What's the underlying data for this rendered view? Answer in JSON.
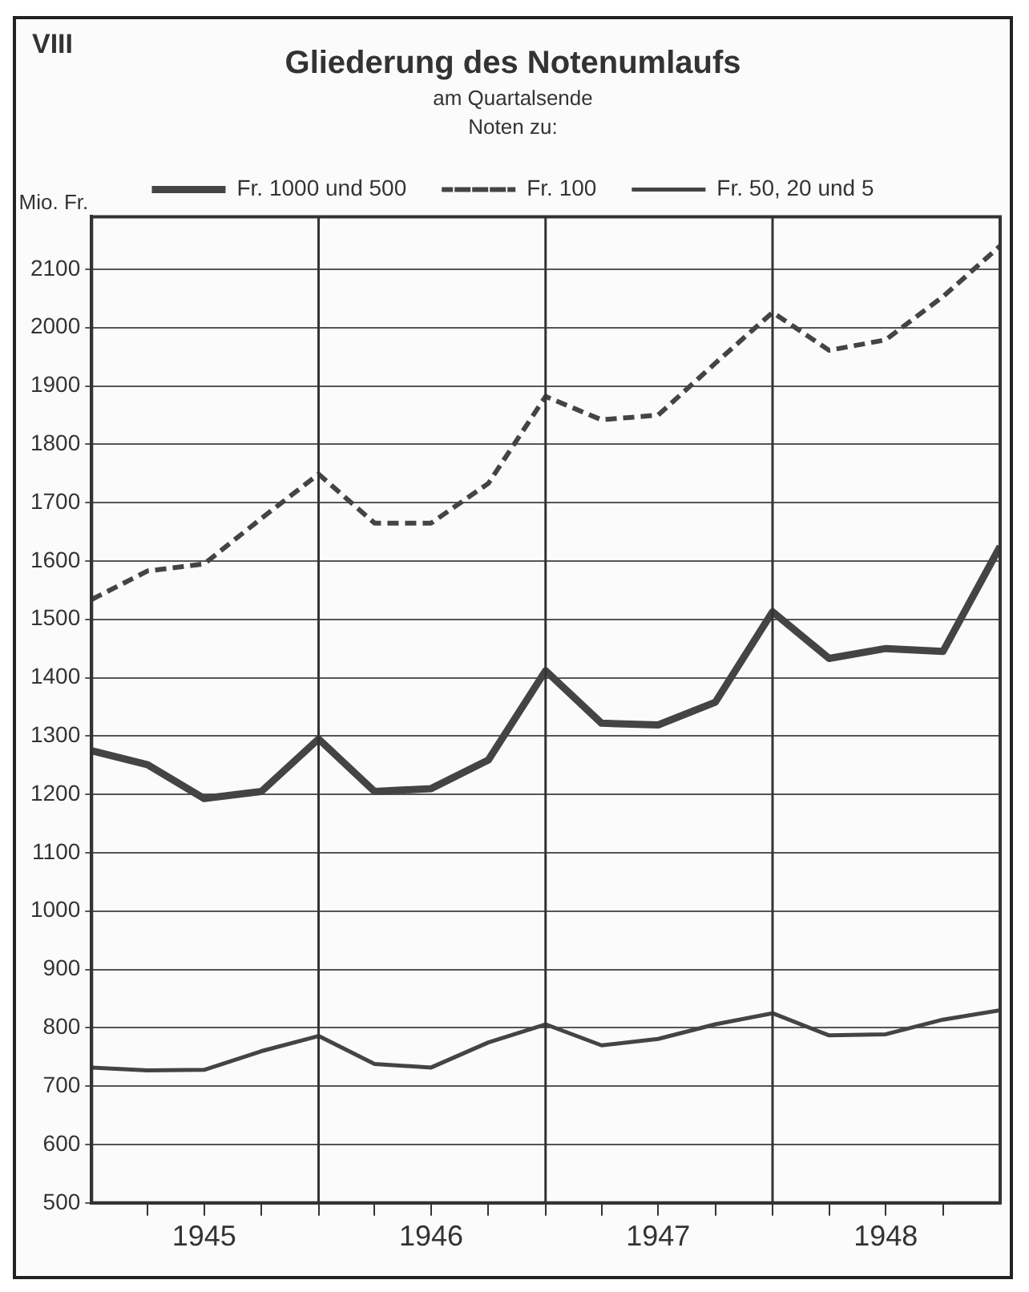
{
  "chart_data": {
    "type": "line",
    "title": "Gliederung des Notenumlaufs",
    "subtitle": "am Quartalsende",
    "legend_title": "Noten zu:",
    "ylabel": "Mio. Fr.",
    "annotations": [
      "VIII"
    ],
    "x": [
      "1944-12-31",
      "1945-03-31",
      "1945-06-30",
      "1945-09-30",
      "1945-12-31",
      "1946-03-31",
      "1946-06-30",
      "1946-09-30",
      "1946-12-31",
      "1947-03-31",
      "1947-06-30",
      "1947-09-30",
      "1947-12-31",
      "1948-03-31",
      "1948-06-30",
      "1948-09-30",
      "1948-12-31"
    ],
    "xlim": [
      "1944-12-31",
      "1948-12-31"
    ],
    "xticks": [
      {
        "value": "1945-03-31",
        "label": null
      },
      {
        "value": "1945-06-30",
        "label": "1945"
      },
      {
        "value": "1945-09-30",
        "label": null
      },
      {
        "value": "1945-12-31",
        "label": null
      },
      {
        "value": "1946-03-31",
        "label": null
      },
      {
        "value": "1946-06-30",
        "label": "1946"
      },
      {
        "value": "1946-09-30",
        "label": null
      },
      {
        "value": "1946-12-31",
        "label": null
      },
      {
        "value": "1947-03-31",
        "label": null
      },
      {
        "value": "1947-06-30",
        "label": "1947"
      },
      {
        "value": "1947-09-30",
        "label": null
      },
      {
        "value": "1947-12-31",
        "label": null
      },
      {
        "value": "1948-03-31",
        "label": null
      },
      {
        "value": "1948-06-30",
        "label": "1948"
      },
      {
        "value": "1948-09-30",
        "label": null
      }
    ],
    "ylim": [
      500,
      2190
    ],
    "yticks": [
      500,
      600,
      700,
      800,
      900,
      1000,
      1100,
      1200,
      1300,
      1400,
      1500,
      1600,
      1700,
      1800,
      1900,
      2000,
      2100
    ],
    "series": [
      {
        "name": "Fr. 1000 und 500",
        "color": "#444444",
        "line_style": "solid",
        "values": [
          1275,
          1251,
          1193,
          1205,
          1295,
          1205,
          1210,
          1259,
          1412,
          1322,
          1319,
          1358,
          1513,
          1433,
          1450,
          1445,
          1625
        ]
      },
      {
        "name": "Fr. 100",
        "color": "#444444",
        "line_style": "dashed",
        "values": [
          1534,
          1583,
          1595,
          1673,
          1749,
          1665,
          1665,
          1733,
          1882,
          1842,
          1850,
          1939,
          2026,
          1961,
          1979,
          2053,
          2140
        ]
      },
      {
        "name": "Fr. 50, 20 und 5",
        "color": "#444444",
        "line_style": "solid",
        "values": [
          732,
          727,
          728,
          760,
          786,
          738,
          732,
          775,
          806,
          770,
          781,
          806,
          825,
          787,
          789,
          814,
          830
        ]
      }
    ],
    "ref_lines": [
      {
        "axis": "x",
        "value": "1945-12-31",
        "label": null,
        "color": "#333333"
      },
      {
        "axis": "x",
        "value": "1946-12-31",
        "label": null,
        "color": "#333333"
      },
      {
        "axis": "x",
        "value": "1947-12-31",
        "label": null,
        "color": "#333333"
      }
    ],
    "grid": "y",
    "legend": "top",
    "marker": "none"
  }
}
